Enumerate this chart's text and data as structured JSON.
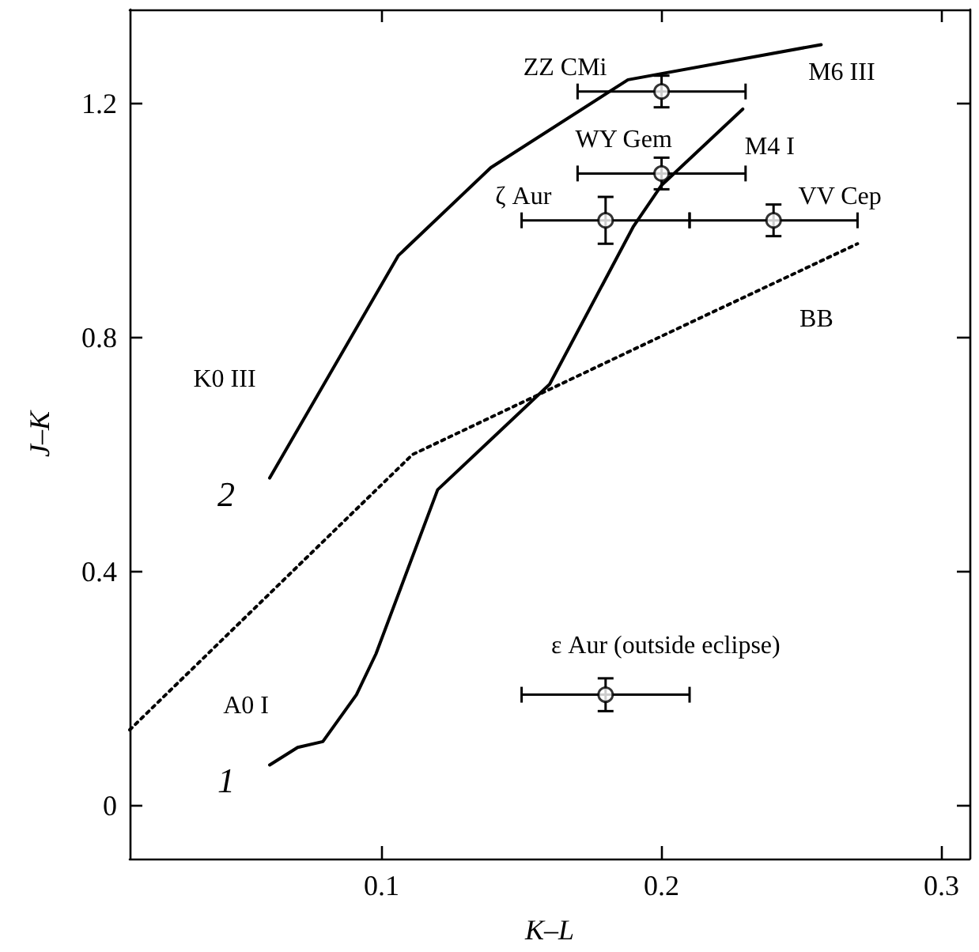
{
  "chart_data": {
    "type": "line",
    "xlabel": "K–L",
    "ylabel": "J–K",
    "xlim": [
      0.01,
      0.31
    ],
    "xticks": [
      0.1,
      0.2,
      0.3
    ],
    "ylim": [
      -0.09,
      1.36
    ],
    "yticks": [
      0,
      0.4,
      0.8,
      1.2
    ],
    "grid": false,
    "legend": false,
    "series": [
      {
        "name": "1",
        "color": "#000000",
        "line_style": "solid",
        "x": [
          0.06,
          0.07,
          0.079,
          0.091,
          0.098,
          0.12,
          0.14,
          0.16,
          0.19,
          0.2,
          0.229
        ],
        "values": [
          0.07,
          0.1,
          0.11,
          0.19,
          0.26,
          0.54,
          0.63,
          0.72,
          0.99,
          1.06,
          1.19
        ]
      },
      {
        "name": "2",
        "color": "#000000",
        "line_style": "solid",
        "x": [
          0.06,
          0.106,
          0.139,
          0.188,
          0.257
        ],
        "values": [
          0.56,
          0.94,
          1.09,
          1.24,
          1.3
        ]
      },
      {
        "color": "#000000",
        "line_style": "dotted",
        "x": [
          0.01,
          0.111,
          0.199,
          0.27
        ],
        "values": [
          0.13,
          0.6,
          0.8,
          0.96
        ]
      },
      {
        "type": "scatter",
        "color": "#000000",
        "marker": "circle",
        "x": [
          0.2,
          0.2,
          0.18,
          0.24,
          0.18
        ],
        "values": [
          1.22,
          1.08,
          1.0,
          1.0,
          0.19
        ],
        "errors": [
          0.027,
          0.027,
          0.04,
          0.027,
          0.028
        ],
        "xerrors": [
          0.03,
          0.03,
          0.03,
          0.03,
          0.03
        ]
      }
    ],
    "annotations": [
      {
        "text": "ZZ CMi",
        "x": 0.2,
        "y": 1.22
      },
      {
        "text": "M6 III",
        "x": 0.257,
        "y": 1.3
      },
      {
        "text": "WY Gem",
        "x": 0.2,
        "y": 1.08
      },
      {
        "text": "M4 I",
        "x": 0.229,
        "y": 1.19
      },
      {
        "text": "ζ Aur",
        "x": 0.18,
        "y": 1.0
      },
      {
        "text": "VV Cep",
        "x": 0.24,
        "y": 1.0
      },
      {
        "text": "BB",
        "x": 0.27,
        "y": 0.96
      },
      "K0 III",
      {
        "text": "A0 I",
        "x": 0.06,
        "y": 0.07
      },
      {
        "text": "ε Aur (outside eclipse)",
        "x": 0.18,
        "y": 0.19
      }
    ]
  }
}
